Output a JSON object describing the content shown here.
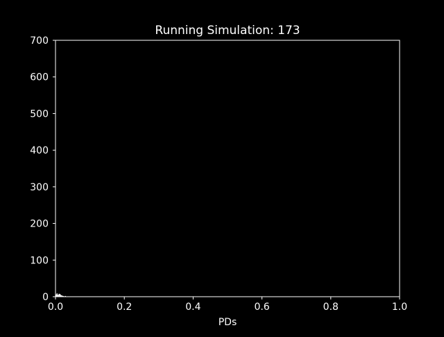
{
  "chart_data": {
    "type": "bar",
    "title": "Running Simulation: 173",
    "xlabel": "PDs",
    "ylabel": "",
    "xlim": [
      0.0,
      1.0
    ],
    "ylim": [
      0,
      700
    ],
    "xticks": [
      "0.0",
      "0.2",
      "0.4",
      "0.6",
      "0.8",
      "1.0"
    ],
    "yticks": [
      "0",
      "100",
      "200",
      "300",
      "400",
      "500",
      "600",
      "700"
    ],
    "grid": false,
    "legend": "none",
    "bins": [
      {
        "x0": 0.0,
        "x1": 0.003,
        "value": 6
      },
      {
        "x0": 0.003,
        "x1": 0.006,
        "value": 9
      },
      {
        "x0": 0.006,
        "x1": 0.009,
        "value": 5
      },
      {
        "x0": 0.009,
        "x1": 0.012,
        "value": 8
      },
      {
        "x0": 0.012,
        "x1": 0.015,
        "value": 7
      },
      {
        "x0": 0.015,
        "x1": 0.018,
        "value": 4
      },
      {
        "x0": 0.018,
        "x1": 0.021,
        "value": 3
      },
      {
        "x0": 0.021,
        "x1": 0.024,
        "value": 2
      },
      {
        "x0": 0.024,
        "x1": 0.027,
        "value": 1
      },
      {
        "x0": 0.027,
        "x1": 0.03,
        "value": 2
      }
    ]
  },
  "colors": {
    "background": "#000000",
    "axes": "#ffffff",
    "text": "#ffffff",
    "bars": "#ffffff"
  }
}
